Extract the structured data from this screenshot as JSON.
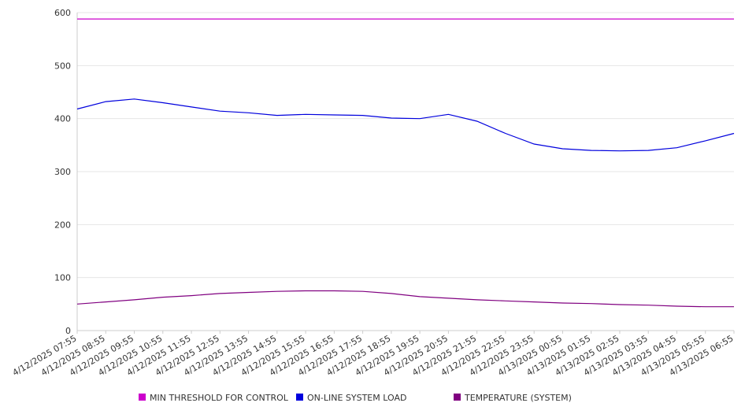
{
  "chart_data": {
    "type": "line",
    "title": "",
    "xlabel": "",
    "ylabel": "",
    "ylim": [
      0,
      600
    ],
    "yticks": [
      0,
      100,
      200,
      300,
      400,
      500,
      600
    ],
    "grid": true,
    "legend_position": "bottom",
    "x": [
      "4/12/2025 07:55",
      "4/12/2025 08:55",
      "4/12/2025 09:55",
      "4/12/2025 10:55",
      "4/12/2025 11:55",
      "4/12/2025 12:55",
      "4/12/2025 13:55",
      "4/12/2025 14:55",
      "4/12/2025 15:55",
      "4/12/2025 16:55",
      "4/12/2025 17:55",
      "4/12/2025 18:55",
      "4/12/2025 19:55",
      "4/12/2025 20:55",
      "4/12/2025 21:55",
      "4/12/2025 22:55",
      "4/12/2025 23:55",
      "4/13/2025 00:55",
      "4/13/2025 01:55",
      "4/13/2025 02:55",
      "4/13/2025 03:55",
      "4/13/2025 04:55",
      "4/13/2025 05:55",
      "4/13/2025 06:55"
    ],
    "series": [
      {
        "name": "MIN THRESHOLD FOR CONTROL",
        "color": "#cc00cc",
        "values": [
          588,
          588,
          588,
          588,
          588,
          588,
          588,
          588,
          588,
          588,
          588,
          588,
          588,
          588,
          588,
          588,
          588,
          588,
          588,
          588,
          588,
          588,
          588,
          588
        ]
      },
      {
        "name": "ON-LINE SYSTEM LOAD",
        "color": "#0000dd",
        "values": [
          418,
          432,
          437,
          430,
          422,
          414,
          411,
          406,
          408,
          407,
          406,
          401,
          400,
          408,
          395,
          372,
          352,
          343,
          340,
          339,
          340,
          345,
          358,
          372
        ]
      },
      {
        "name": "TEMPERATURE (SYSTEM)",
        "color": "#800080",
        "values": [
          50,
          54,
          58,
          63,
          66,
          70,
          72,
          74,
          75,
          75,
          74,
          70,
          64,
          61,
          58,
          56,
          54,
          52,
          51,
          49,
          48,
          46,
          45,
          45
        ]
      }
    ]
  }
}
